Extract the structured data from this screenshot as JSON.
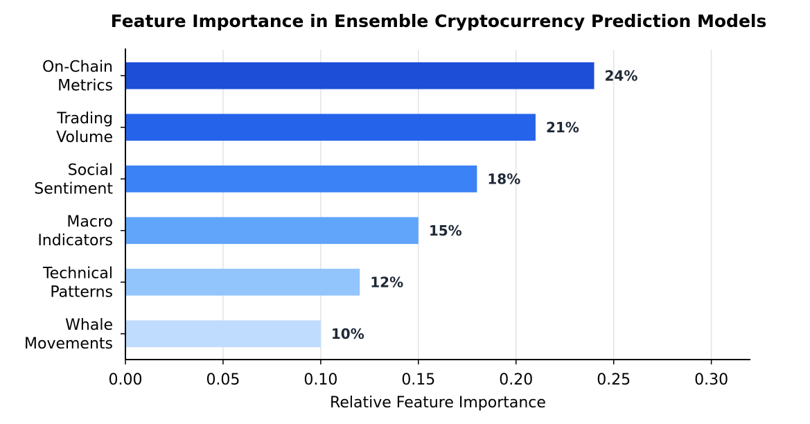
{
  "chart_data": {
    "type": "bar",
    "orientation": "horizontal",
    "title": "Feature Importance in Ensemble Cryptocurrency Prediction Models",
    "xlabel": "Relative Feature Importance",
    "ylabel": "",
    "xlim": [
      0,
      0.32
    ],
    "x_ticks": [
      0.0,
      0.05,
      0.1,
      0.15,
      0.2,
      0.25,
      0.3
    ],
    "x_tick_labels": [
      "0.00",
      "0.05",
      "0.10",
      "0.15",
      "0.20",
      "0.25",
      "0.30"
    ],
    "grid": "vertical",
    "categories": [
      [
        "On-Chain",
        "Metrics"
      ],
      [
        "Trading",
        "Volume"
      ],
      [
        "Social",
        "Sentiment"
      ],
      [
        "Macro",
        "Indicators"
      ],
      [
        "Technical",
        "Patterns"
      ],
      [
        "Whale",
        "Movements"
      ]
    ],
    "values": [
      0.24,
      0.21,
      0.18,
      0.15,
      0.12,
      0.1
    ],
    "data_labels": [
      "24%",
      "21%",
      "18%",
      "15%",
      "12%",
      "10%"
    ],
    "colors": [
      "#1d4ed8",
      "#2563eb",
      "#3b82f6",
      "#60a5fa",
      "#93c5fd",
      "#bfdbfe"
    ]
  }
}
